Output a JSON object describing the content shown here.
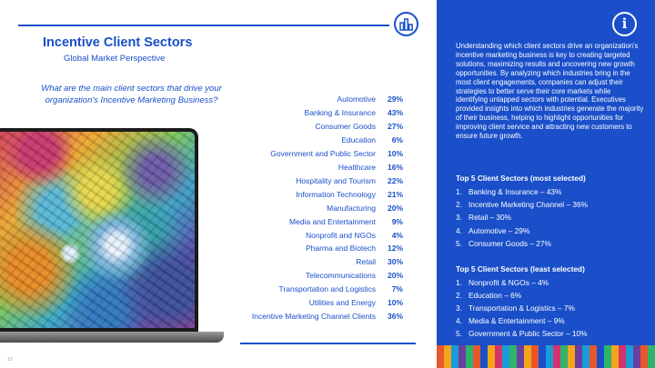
{
  "title": "Incentive Client Sectors",
  "subtitle": "Global Market Perspective",
  "question": "What are the main client sectors that drive your organization's Incentive Marketing Business?",
  "sectors": [
    {
      "name": "Automotive",
      "value": "29%"
    },
    {
      "name": "Banking & Insurance",
      "value": "43%"
    },
    {
      "name": "Consumer Goods",
      "value": "27%"
    },
    {
      "name": "Education",
      "value": "6%"
    },
    {
      "name": "Government and Public Sector",
      "value": "10%"
    },
    {
      "name": "Healthcare",
      "value": "16%"
    },
    {
      "name": "Hospitality and Tourism",
      "value": "22%"
    },
    {
      "name": "Information Technology",
      "value": "21%"
    },
    {
      "name": "Manufacturing",
      "value": "20%"
    },
    {
      "name": "Media and Entertainment",
      "value": "9%"
    },
    {
      "name": "Nonprofit and NGOs",
      "value": "4%"
    },
    {
      "name": "Pharma and Biotech",
      "value": "12%"
    },
    {
      "name": "Retail",
      "value": "30%"
    },
    {
      "name": "Telecommunications",
      "value": "20%"
    },
    {
      "name": "Transportation and Logistics",
      "value": "7%"
    },
    {
      "name": "Utilities and Energy",
      "value": "10%"
    },
    {
      "name": "Incentive Marketing Channel Clients",
      "value": "36%"
    }
  ],
  "panel": {
    "paragraph": "Understanding which client sectors drive an organization's incentive marketing business is key to creating targeted solutions, maximizing results and uncovering new growth opportunities. By analyzing which industries bring in the most client engagements, companies can adjust their strategies to better serve their core markets while identifying untapped sectors with potential. Executives provided insights into which industries generate the majority of their business, helping to highlight opportunities for improving client service and attracting new customers to ensure future growth.",
    "most_title": "Top 5 Client Sectors (most selected)",
    "most": [
      "Banking & Insurance – 43%",
      "Incentive Marketing Channel – 36%",
      "Retail – 30%",
      "Automotive – 29%",
      "Consumer Goods – 27%"
    ],
    "least_title": "Top 5 Client Sectors (least selected)",
    "least": [
      "Nonprofit & NGOs – 4%",
      "Education – 6%",
      "Transportation & Logistics – 7%",
      "Media & Entertainment – 9%",
      "Government & Public Sector – 10%"
    ]
  },
  "page_number": "10",
  "icons": {
    "chart": "bar-chart-icon",
    "info": "info-icon"
  },
  "colors": {
    "brand_blue": "#1a4fc9",
    "stripe": [
      "#e8572b",
      "#f4a51c",
      "#1a9cd8",
      "#6a3fa0",
      "#2eb46b",
      "#e8572b",
      "#1a4fc9",
      "#f4a51c",
      "#d6336c",
      "#1a9cd8",
      "#2eb46b",
      "#6a3fa0",
      "#f4a51c",
      "#e8572b",
      "#1a4fc9",
      "#1a9cd8",
      "#d6336c",
      "#2eb46b",
      "#f4a51c",
      "#6a3fa0",
      "#1a9cd8",
      "#e8572b",
      "#1a4fc9",
      "#2eb46b",
      "#f4a51c",
      "#d6336c",
      "#1a9cd8",
      "#6a3fa0",
      "#e8572b",
      "#2eb46b"
    ]
  }
}
